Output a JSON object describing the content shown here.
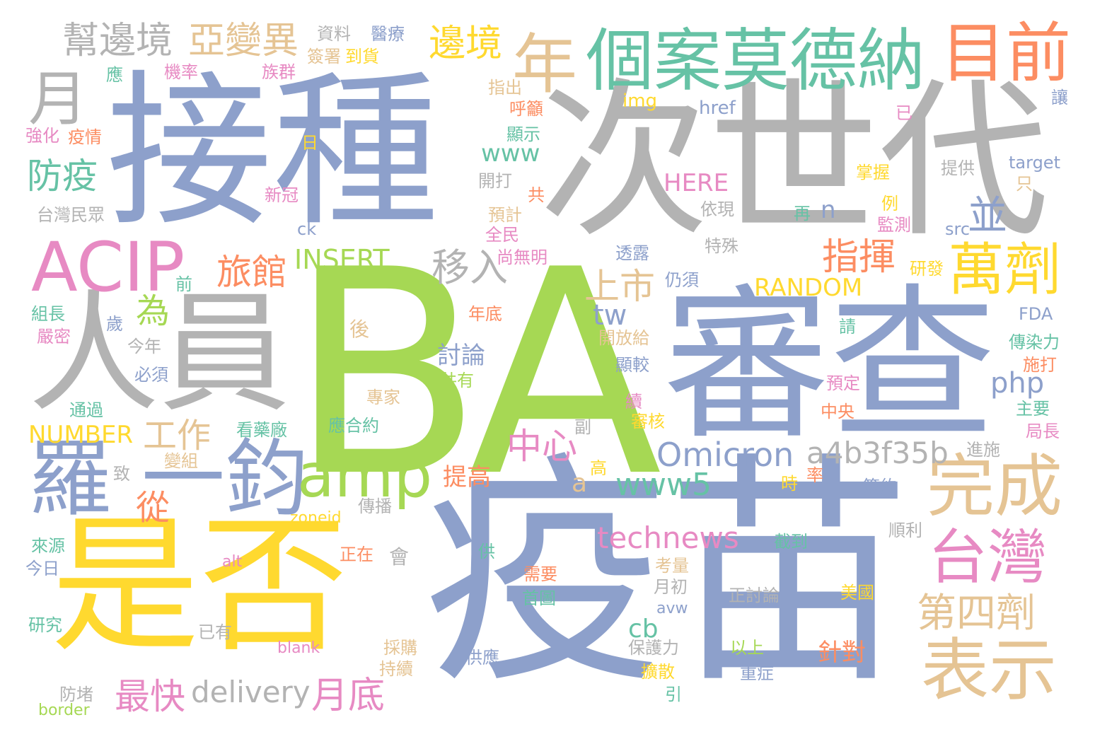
{
  "words": [
    {
      "text": "BA",
      "color": "#a6d854"
    },
    {
      "text": "疫苗",
      "color": "#8da0cb"
    },
    {
      "text": "次世代",
      "color": "#b3b3b3"
    },
    {
      "text": "接種",
      "color": "#8da0cb"
    },
    {
      "text": "審查",
      "color": "#8da0cb"
    },
    {
      "text": "是否",
      "color": "#ffd92f"
    },
    {
      "text": "人員",
      "color": "#b3b3b3"
    },
    {
      "text": "個案莫德納",
      "color": "#66c2a5"
    },
    {
      "text": "目前",
      "color": "#fc8d62"
    },
    {
      "text": "ACIP",
      "color": "#e78ac3"
    },
    {
      "text": "羅",
      "color": "#8da0cb"
    },
    {
      "text": "一鈞",
      "color": "#8da0cb"
    },
    {
      "text": "amp",
      "color": "#a6d854"
    },
    {
      "text": "完成",
      "color": "#e5c494"
    },
    {
      "text": "表示",
      "color": "#e5c494"
    },
    {
      "text": "萬劑",
      "color": "#ffd92f"
    },
    {
      "text": "台灣",
      "color": "#e78ac3"
    },
    {
      "text": "年",
      "color": "#e5c494"
    },
    {
      "text": "月",
      "color": "#b3b3b3"
    },
    {
      "text": "幫邊境",
      "color": "#b3b3b3"
    },
    {
      "text": "亞變異",
      "color": "#e5c494"
    },
    {
      "text": "邊境",
      "color": "#ffd92f"
    },
    {
      "text": "防疫",
      "color": "#66c2a5"
    },
    {
      "text": "指揮",
      "color": "#fc8d62"
    },
    {
      "text": "並",
      "color": "#8da0cb"
    },
    {
      "text": "旅館",
      "color": "#fc8d62"
    },
    {
      "text": "移入",
      "color": "#b3b3b3"
    },
    {
      "text": "INSERT",
      "color": "#a6d854"
    },
    {
      "text": "上市",
      "color": "#e5c494"
    },
    {
      "text": "為",
      "color": "#a6d854"
    },
    {
      "text": "Omicron",
      "color": "#8da0cb"
    },
    {
      "text": "a4b3f35b",
      "color": "#b3b3b3"
    },
    {
      "text": "第四劑",
      "color": "#e5c494"
    },
    {
      "text": "中心",
      "color": "#e78ac3"
    },
    {
      "text": "www5",
      "color": "#66c2a5"
    },
    {
      "text": "technews",
      "color": "#e78ac3"
    },
    {
      "text": "工作",
      "color": "#e5c494"
    },
    {
      "text": "NUMBER",
      "color": "#ffd92f"
    },
    {
      "text": "從",
      "color": "#fc8d62"
    },
    {
      "text": "最快",
      "color": "#e78ac3"
    },
    {
      "text": "delivery",
      "color": "#b3b3b3"
    },
    {
      "text": "月底",
      "color": "#e78ac3"
    },
    {
      "text": "討論",
      "color": "#8da0cb"
    },
    {
      "text": "tw",
      "color": "#8da0cb"
    },
    {
      "text": "php",
      "color": "#8da0cb"
    },
    {
      "text": "RANDOM",
      "color": "#ffd92f"
    },
    {
      "text": "cb",
      "color": "#66c2a5"
    },
    {
      "text": "針對",
      "color": "#fc8d62"
    },
    {
      "text": "www",
      "color": "#66c2a5"
    },
    {
      "text": "HERE",
      "color": "#e78ac3"
    },
    {
      "text": "提高",
      "color": "#fc8d62"
    },
    {
      "text": "a",
      "color": "#e5c494"
    },
    {
      "text": "n",
      "color": "#8da0cb"
    },
    {
      "text": "資料",
      "color": "#b3b3b3"
    },
    {
      "text": "醫療",
      "color": "#8da0cb"
    },
    {
      "text": "簽署",
      "color": "#e5c494"
    },
    {
      "text": "到貨",
      "color": "#ffd92f"
    },
    {
      "text": "應",
      "color": "#66c2a5"
    },
    {
      "text": "機率",
      "color": "#e78ac3"
    },
    {
      "text": "族群",
      "color": "#e78ac3"
    },
    {
      "text": "指出",
      "color": "#e5c494"
    },
    {
      "text": "呼籲",
      "color": "#fc8d62"
    },
    {
      "text": "img",
      "color": "#ffd92f"
    },
    {
      "text": "href",
      "color": "#8da0cb"
    },
    {
      "text": "讓",
      "color": "#8da0cb"
    },
    {
      "text": "強化",
      "color": "#e78ac3"
    },
    {
      "text": "疫情",
      "color": "#fc8d62"
    },
    {
      "text": "日",
      "color": "#ffd92f"
    },
    {
      "text": "顯示",
      "color": "#66c2a5"
    },
    {
      "text": "已",
      "color": "#e78ac3"
    },
    {
      "text": "target",
      "color": "#8da0cb"
    },
    {
      "text": "提供",
      "color": "#b3b3b3"
    },
    {
      "text": "掌握",
      "color": "#ffd92f"
    },
    {
      "text": "只",
      "color": "#e5c494"
    },
    {
      "text": "開打",
      "color": "#b3b3b3"
    },
    {
      "text": "共",
      "color": "#fc8d62"
    },
    {
      "text": "新冠",
      "color": "#e78ac3"
    },
    {
      "text": "依現",
      "color": "#b3b3b3"
    },
    {
      "text": "例",
      "color": "#ffd92f"
    },
    {
      "text": "台灣民眾",
      "color": "#b3b3b3"
    },
    {
      "text": "預計",
      "color": "#e5c494"
    },
    {
      "text": "全民",
      "color": "#e78ac3"
    },
    {
      "text": "監測",
      "color": "#e78ac3"
    },
    {
      "text": "再",
      "color": "#66c2a5"
    },
    {
      "text": "src",
      "color": "#8da0cb"
    },
    {
      "text": "ck",
      "color": "#8da0cb"
    },
    {
      "text": "尚無明",
      "color": "#e78ac3"
    },
    {
      "text": "透露",
      "color": "#8da0cb"
    },
    {
      "text": "特殊",
      "color": "#b3b3b3"
    },
    {
      "text": "研發",
      "color": "#ffd92f"
    },
    {
      "text": "前",
      "color": "#66c2a5"
    },
    {
      "text": "仍須",
      "color": "#8da0cb"
    },
    {
      "text": "組長",
      "color": "#66c2a5"
    },
    {
      "text": "歲",
      "color": "#8da0cb"
    },
    {
      "text": "年底",
      "color": "#fc8d62"
    },
    {
      "text": "後",
      "color": "#e5c494"
    },
    {
      "text": "開放給",
      "color": "#e5c494"
    },
    {
      "text": "FDA",
      "color": "#8da0cb"
    },
    {
      "text": "嚴密",
      "color": "#e78ac3"
    },
    {
      "text": "請",
      "color": "#66c2a5"
    },
    {
      "text": "傳染力",
      "color": "#66c2a5"
    },
    {
      "text": "今年",
      "color": "#b3b3b3"
    },
    {
      "text": "顯較",
      "color": "#8da0cb"
    },
    {
      "text": "施打",
      "color": "#fc8d62"
    },
    {
      "text": "必須",
      "color": "#8da0cb"
    },
    {
      "text": "共有",
      "color": "#a6d854"
    },
    {
      "text": "預定",
      "color": "#e78ac3"
    },
    {
      "text": "專家",
      "color": "#e5c494"
    },
    {
      "text": "續",
      "color": "#e78ac3"
    },
    {
      "text": "審核",
      "color": "#ffd92f"
    },
    {
      "text": "主要",
      "color": "#66c2a5"
    },
    {
      "text": "通過",
      "color": "#66c2a5"
    },
    {
      "text": "應合約",
      "color": "#66c2a5"
    },
    {
      "text": "中央",
      "color": "#fc8d62"
    },
    {
      "text": "看藥廠",
      "color": "#66c2a5"
    },
    {
      "text": "副",
      "color": "#b3b3b3"
    },
    {
      "text": "局長",
      "color": "#e78ac3"
    },
    {
      "text": "變組",
      "color": "#e5c494"
    },
    {
      "text": "進施",
      "color": "#b3b3b3"
    },
    {
      "text": "致",
      "color": "#b3b3b3"
    },
    {
      "text": "高",
      "color": "#ffd92f"
    },
    {
      "text": "率",
      "color": "#fc8d62"
    },
    {
      "text": "時",
      "color": "#ffd92f"
    },
    {
      "text": "簽約",
      "color": "#8da0cb"
    },
    {
      "text": "傳播",
      "color": "#b3b3b3"
    },
    {
      "text": "zoneid",
      "color": "#ffd92f"
    },
    {
      "text": "順利",
      "color": "#b3b3b3"
    },
    {
      "text": "截到",
      "color": "#66c2a5"
    },
    {
      "text": "來源",
      "color": "#66c2a5"
    },
    {
      "text": "正在",
      "color": "#fc8d62"
    },
    {
      "text": "供",
      "color": "#66c2a5"
    },
    {
      "text": "會",
      "color": "#b3b3b3"
    },
    {
      "text": "今日",
      "color": "#8da0cb"
    },
    {
      "text": "alt",
      "color": "#e78ac3"
    },
    {
      "text": "需要",
      "color": "#fc8d62"
    },
    {
      "text": "考量",
      "color": "#e5c494"
    },
    {
      "text": "月初",
      "color": "#b3b3b3"
    },
    {
      "text": "正討論",
      "color": "#b3b3b3"
    },
    {
      "text": "美國",
      "color": "#ffd92f"
    },
    {
      "text": "首圖",
      "color": "#66c2a5"
    },
    {
      "text": "avw",
      "color": "#8da0cb"
    },
    {
      "text": "研究",
      "color": "#66c2a5"
    },
    {
      "text": "已有",
      "color": "#b3b3b3"
    },
    {
      "text": "blank",
      "color": "#e78ac3"
    },
    {
      "text": "採購",
      "color": "#e5c494"
    },
    {
      "text": "保護力",
      "color": "#b3b3b3"
    },
    {
      "text": "以上",
      "color": "#a6d854"
    },
    {
      "text": "持續",
      "color": "#e5c494"
    },
    {
      "text": "供應",
      "color": "#8da0cb"
    },
    {
      "text": "擴散",
      "color": "#ffd92f"
    },
    {
      "text": "重症",
      "color": "#8da0cb"
    },
    {
      "text": "防堵",
      "color": "#b3b3b3"
    },
    {
      "text": "引",
      "color": "#66c2a5"
    },
    {
      "text": "border",
      "color": "#a6d854"
    }
  ]
}
